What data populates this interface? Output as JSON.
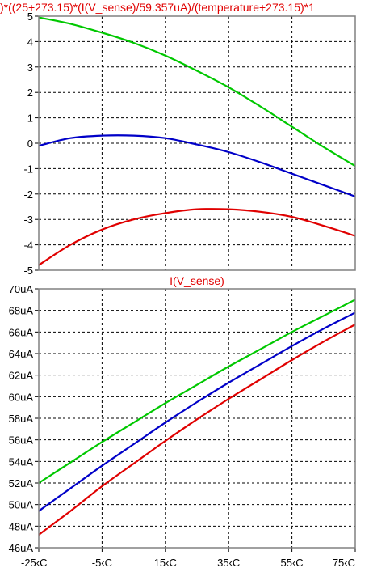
{
  "chart_data": [
    {
      "type": "line",
      "title": ")*((25+273.15)*(I(V_sense)/59.357uA)/(temperature+273.15)*1",
      "xlabel": "",
      "ylabel": "",
      "xlim": [
        -25,
        75
      ],
      "ylim": [
        -5,
        5
      ],
      "y_ticks": [
        {
          "value": 5,
          "label": "5"
        },
        {
          "value": 4,
          "label": "4"
        },
        {
          "value": 3,
          "label": "3"
        },
        {
          "value": 2,
          "label": "2"
        },
        {
          "value": 1,
          "label": "1"
        },
        {
          "value": 0,
          "label": "0"
        },
        {
          "value": -1,
          "label": "-1"
        },
        {
          "value": -2,
          "label": "-2"
        },
        {
          "value": -3,
          "label": "-3"
        },
        {
          "value": -4,
          "label": "-4"
        },
        {
          "value": -5,
          "label": "-5"
        }
      ],
      "grid": true,
      "series": [
        {
          "color": "#00c800",
          "x": [
            -25,
            -15,
            -5,
            5,
            15,
            25,
            35,
            45,
            55,
            65,
            75
          ],
          "values": [
            4.95,
            4.7,
            4.35,
            3.95,
            3.45,
            2.85,
            2.2,
            1.45,
            0.65,
            -0.15,
            -0.9
          ]
        },
        {
          "color": "#0000c8",
          "x": [
            -25,
            -15,
            -5,
            5,
            15,
            25,
            35,
            45,
            55,
            65,
            75
          ],
          "values": [
            -0.1,
            0.2,
            0.3,
            0.3,
            0.2,
            -0.05,
            -0.35,
            -0.75,
            -1.2,
            -1.65,
            -2.1
          ]
        },
        {
          "color": "#e00000",
          "x": [
            -25,
            -15,
            -5,
            5,
            15,
            25,
            35,
            45,
            55,
            65,
            75
          ],
          "values": [
            -4.8,
            -4.0,
            -3.4,
            -3.0,
            -2.75,
            -2.6,
            -2.6,
            -2.7,
            -2.9,
            -3.25,
            -3.65
          ]
        }
      ]
    },
    {
      "type": "line",
      "title": "I(V_sense)",
      "xlabel": "",
      "ylabel": "",
      "xlim": [
        -25,
        75
      ],
      "ylim": [
        46,
        70
      ],
      "y_ticks": [
        {
          "value": 70,
          "label": "70uA"
        },
        {
          "value": 68,
          "label": "68uA"
        },
        {
          "value": 66,
          "label": "66uA"
        },
        {
          "value": 64,
          "label": "64uA"
        },
        {
          "value": 62,
          "label": "62uA"
        },
        {
          "value": 60,
          "label": "60uA"
        },
        {
          "value": 58,
          "label": "58uA"
        },
        {
          "value": 56,
          "label": "56uA"
        },
        {
          "value": 54,
          "label": "54uA"
        },
        {
          "value": 52,
          "label": "52uA"
        },
        {
          "value": 50,
          "label": "50uA"
        },
        {
          "value": 48,
          "label": "48uA"
        },
        {
          "value": 46,
          "label": "46uA"
        }
      ],
      "x_ticks": [
        {
          "value": -25,
          "label": "-25‹C"
        },
        {
          "value": -5,
          "label": "-5‹C"
        },
        {
          "value": 15,
          "label": "15‹C"
        },
        {
          "value": 35,
          "label": "35‹C"
        },
        {
          "value": 55,
          "label": "55‹C"
        },
        {
          "value": 75,
          "label": "75‹C"
        }
      ],
      "grid": true,
      "series": [
        {
          "color": "#00c800",
          "x": [
            -25,
            -15,
            -5,
            5,
            15,
            25,
            35,
            45,
            55,
            65,
            75
          ],
          "values": [
            52.0,
            53.9,
            55.8,
            57.6,
            59.4,
            61.1,
            62.8,
            64.4,
            66.0,
            67.5,
            69.0
          ]
        },
        {
          "color": "#0000c8",
          "x": [
            -25,
            -15,
            -5,
            5,
            15,
            25,
            35,
            45,
            55,
            65,
            75
          ],
          "values": [
            49.4,
            51.5,
            53.6,
            55.6,
            57.6,
            59.5,
            61.3,
            63.0,
            64.7,
            66.3,
            67.8
          ]
        },
        {
          "color": "#e00000",
          "x": [
            -25,
            -15,
            -5,
            5,
            15,
            25,
            35,
            45,
            55,
            65,
            75
          ],
          "values": [
            47.2,
            49.4,
            51.7,
            53.8,
            55.9,
            57.9,
            59.8,
            61.6,
            63.4,
            65.1,
            66.7
          ]
        }
      ]
    }
  ]
}
